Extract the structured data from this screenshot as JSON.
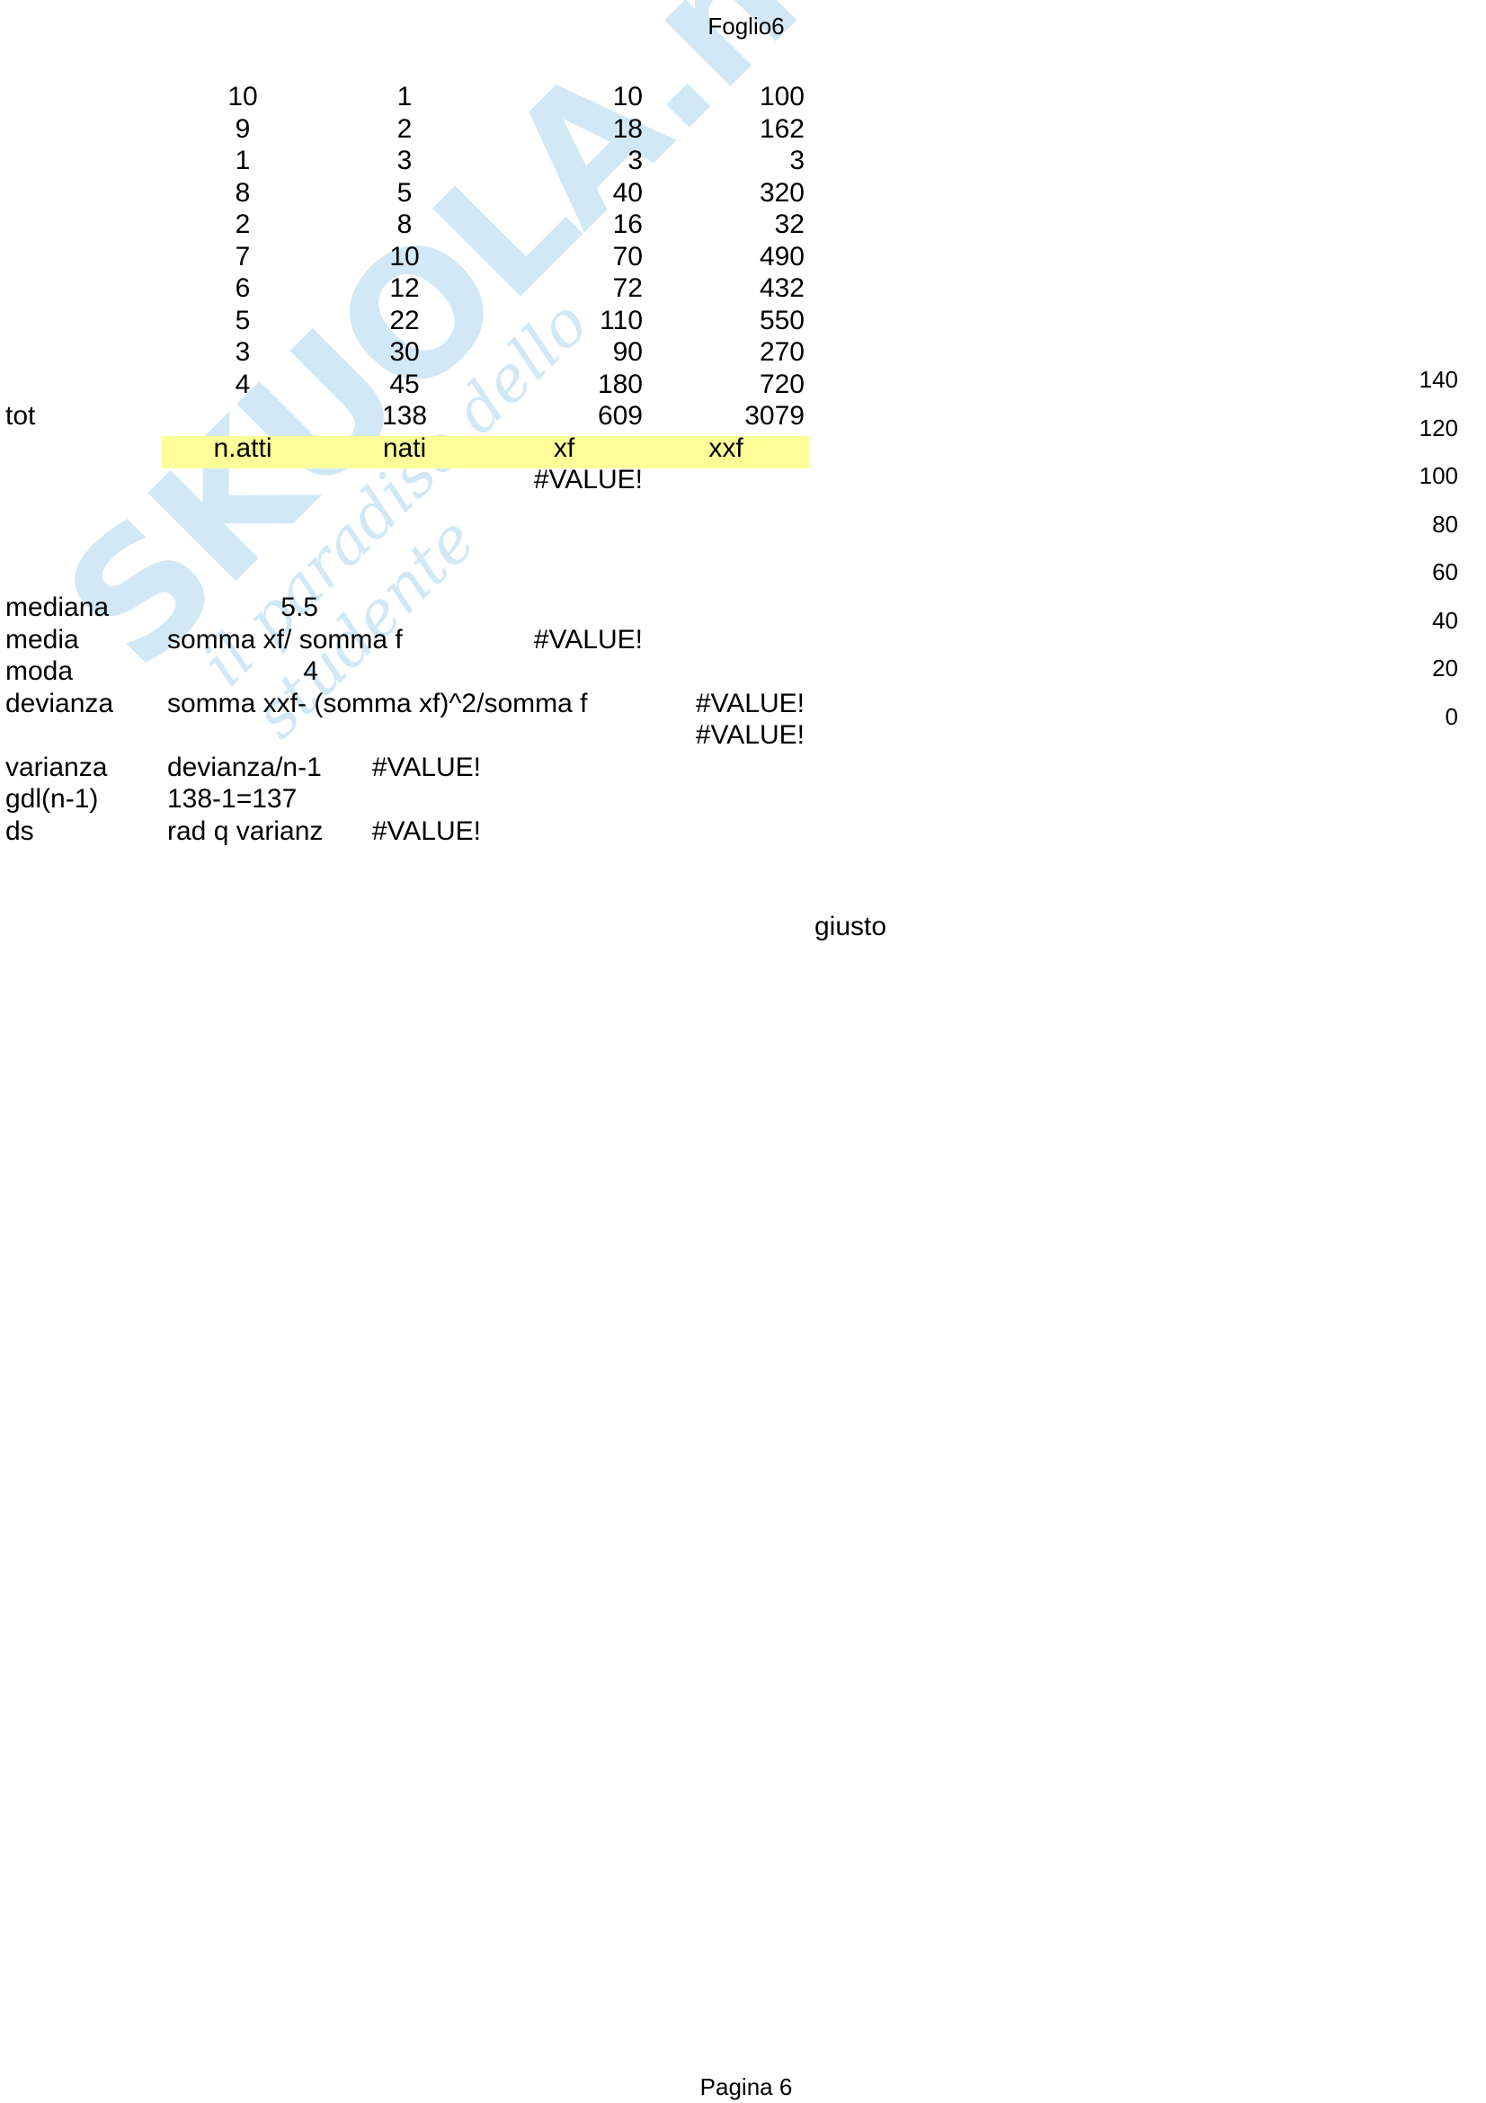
{
  "page_header": "Foglio6",
  "page_footer": "Pagina 6",
  "watermark": {
    "logo": "SKUOLA.net",
    "tagline": "il paradiso dello studente"
  },
  "highlight_color": "#ffff99",
  "data_rows": [
    [
      "10",
      "1",
      "10",
      "100"
    ],
    [
      "9",
      "2",
      "18",
      "162"
    ],
    [
      "1",
      "3",
      "3",
      "3"
    ],
    [
      "8",
      "5",
      "40",
      "320"
    ],
    [
      "2",
      "8",
      "16",
      "32"
    ],
    [
      "7",
      "10",
      "70",
      "490"
    ],
    [
      "6",
      "12",
      "72",
      "432"
    ],
    [
      "5",
      "22",
      "110",
      "550"
    ],
    [
      "3",
      "30",
      "90",
      "270"
    ],
    [
      "4",
      "45",
      "180",
      "720"
    ]
  ],
  "totals": {
    "label": "tot",
    "nati": "138",
    "xf": "609",
    "xxf": "3079"
  },
  "headers": [
    "n.atti",
    "nati",
    "xf",
    "xxf"
  ],
  "xf_error": "#VALUE!",
  "stats": {
    "mediana": {
      "label": "mediana",
      "value": "5.5"
    },
    "media": {
      "label": "media",
      "formula": "somma xf/ somma f",
      "value": "#VALUE!"
    },
    "moda": {
      "label": "moda",
      "value": "4"
    },
    "devianza": {
      "label": "devianza",
      "formula": "somma xxf- (somma xf)^2/somma f",
      "value": "#VALUE!",
      "value2": "#VALUE!"
    },
    "varianza": {
      "label": "varianza",
      "formula": "devianza/n-1",
      "value": "#VALUE!"
    },
    "gdl": {
      "label": "gdl(n-1)",
      "formula": "138-1=137"
    },
    "ds": {
      "label": "ds",
      "formula": "rad q varianz",
      "value": "#VALUE!"
    }
  },
  "note": "giusto",
  "chart_axis_ticks": [
    "140",
    "120",
    "100",
    "80",
    "60",
    "40",
    "20",
    "0"
  ]
}
